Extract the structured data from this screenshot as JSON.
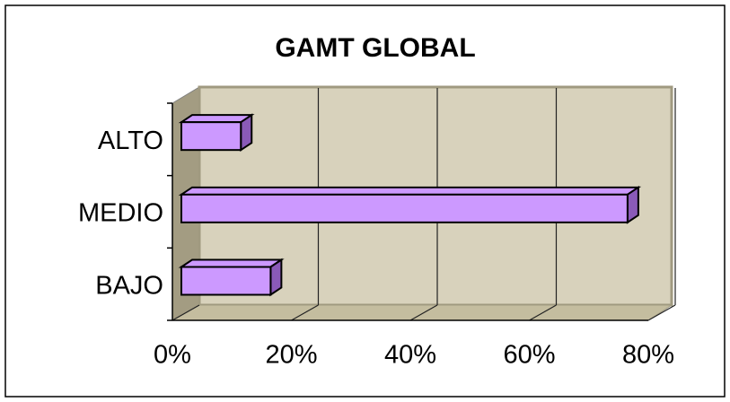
{
  "chart_data": {
    "type": "bar3d_horizontal",
    "title": "GAMT GLOBAL",
    "categories": [
      "ALTO",
      "MEDIO",
      "BAJO"
    ],
    "values": [
      10,
      75,
      15
    ],
    "color": "#cc99ff",
    "xlim": [
      0,
      80
    ],
    "xticks": [
      {
        "value": 0,
        "label": "0%"
      },
      {
        "value": 20,
        "label": "20%"
      },
      {
        "value": 40,
        "label": "40%"
      },
      {
        "value": 60,
        "label": "60%"
      },
      {
        "value": 80,
        "label": "80%"
      }
    ],
    "grid": true
  }
}
